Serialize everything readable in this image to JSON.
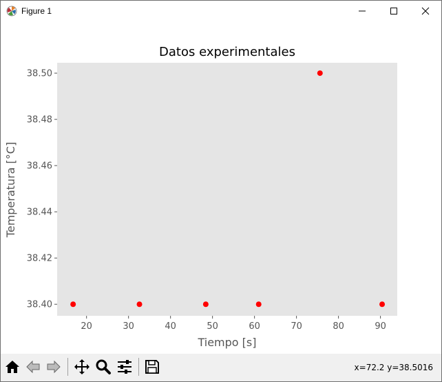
{
  "window": {
    "title": "Figure 1"
  },
  "toolbar": {
    "buttons": [
      {
        "name": "home-icon"
      },
      {
        "name": "back-arrow-icon"
      },
      {
        "name": "forward-arrow-icon"
      },
      {
        "name": "pan-icon"
      },
      {
        "name": "zoom-icon"
      },
      {
        "name": "configure-subplots-icon"
      },
      {
        "name": "save-icon"
      }
    ],
    "coordinates": "x=72.2 y=38.5016"
  },
  "colors": {
    "axes_bg": "#e5e5e5",
    "marker": "#ff0000",
    "tick_text": "#555555",
    "label_text": "#555555"
  },
  "chart_data": {
    "type": "scatter",
    "title": "Datos experimentales",
    "xlabel": "Tiempo [s]",
    "ylabel": "Temperatura [°C]",
    "xlim": [
      13,
      94
    ],
    "ylim": [
      38.395,
      38.5045
    ],
    "grid": false,
    "xticks": [
      20,
      30,
      40,
      50,
      60,
      70,
      80,
      90
    ],
    "yticks": [
      38.4,
      38.42,
      38.44,
      38.46,
      38.48,
      38.5
    ],
    "xtick_labels": [
      "20",
      "30",
      "40",
      "50",
      "60",
      "70",
      "80",
      "90"
    ],
    "ytick_labels": [
      "38.40",
      "38.42",
      "38.44",
      "38.46",
      "38.48",
      "38.50"
    ],
    "points": [
      {
        "x": 16.8,
        "y": 38.4
      },
      {
        "x": 32.6,
        "y": 38.4
      },
      {
        "x": 48.4,
        "y": 38.4
      },
      {
        "x": 61.0,
        "y": 38.4
      },
      {
        "x": 75.6,
        "y": 38.5
      },
      {
        "x": 90.4,
        "y": 38.4
      }
    ]
  }
}
